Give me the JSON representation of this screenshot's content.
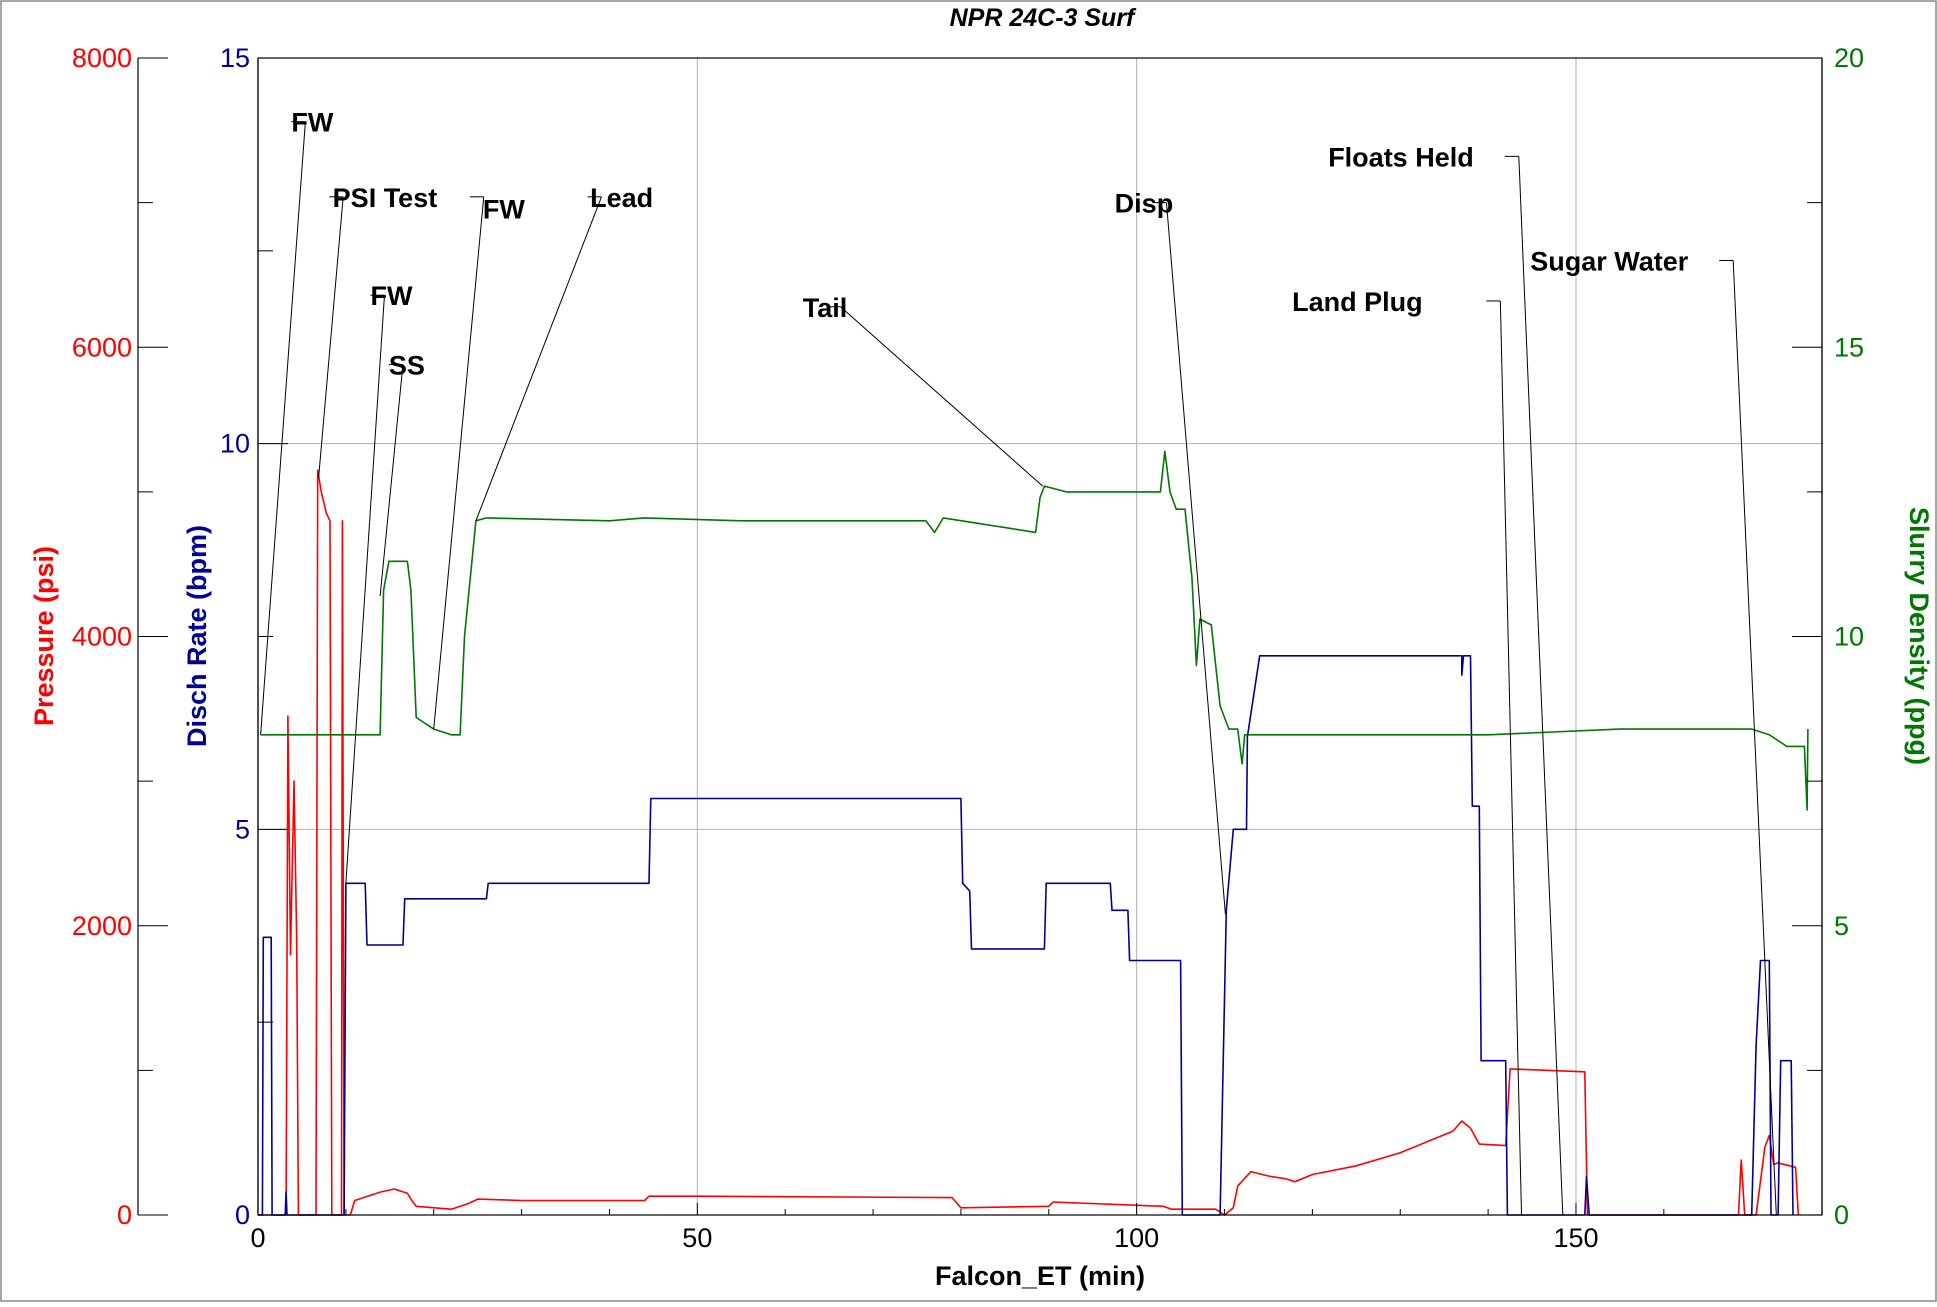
{
  "chart_data": {
    "type": "line",
    "title": "NPR 24C-3 Surf",
    "xlabel": "Falcon_ET (min)",
    "xlim": [
      0,
      178
    ],
    "xticks": [
      0,
      50,
      100,
      150
    ],
    "grid": true,
    "axes": {
      "pressure": {
        "label": "Pressure (psi)",
        "color": "#ff0000",
        "ylim": [
          0,
          8000
        ],
        "ticks": [
          0,
          2000,
          4000,
          6000,
          8000
        ]
      },
      "rate": {
        "label": "Disch Rate (bpm)",
        "color": "#000099",
        "ylim": [
          0,
          15
        ],
        "ticks": [
          0,
          5,
          10,
          15
        ]
      },
      "density": {
        "label": "Slurry Density (ppg)",
        "color": "#007700",
        "ylim": [
          0,
          20
        ],
        "ticks": [
          0,
          5,
          10,
          15,
          20
        ]
      }
    },
    "series": [
      {
        "name": "Pressure (psi)",
        "axis": "pressure",
        "color": "#ff0000",
        "points": [
          [
            0,
            0
          ],
          [
            3.2,
            0
          ],
          [
            3.4,
            3450
          ],
          [
            3.7,
            1800
          ],
          [
            4.1,
            3000
          ],
          [
            4.4,
            1900
          ],
          [
            4.6,
            0
          ],
          [
            6.6,
            0
          ],
          [
            6.8,
            5150
          ],
          [
            7.2,
            5000
          ],
          [
            7.8,
            4850
          ],
          [
            8.2,
            4800
          ],
          [
            8.4,
            0
          ],
          [
            9.5,
            0
          ],
          [
            9.6,
            4800
          ],
          [
            9.8,
            0
          ],
          [
            10.5,
            0
          ],
          [
            11,
            100
          ],
          [
            12,
            120
          ],
          [
            14,
            160
          ],
          [
            15.5,
            180
          ],
          [
            17,
            150
          ],
          [
            17.5,
            100
          ],
          [
            18,
            60
          ],
          [
            22,
            40
          ],
          [
            24,
            80
          ],
          [
            25,
            110
          ],
          [
            30,
            100
          ],
          [
            44,
            100
          ],
          [
            44.5,
            130
          ],
          [
            50,
            130
          ],
          [
            79,
            120
          ],
          [
            80,
            50
          ],
          [
            90,
            60
          ],
          [
            90.5,
            90
          ],
          [
            103,
            60
          ],
          [
            104,
            40
          ],
          [
            109,
            40
          ],
          [
            110,
            0
          ],
          [
            111,
            50
          ],
          [
            111.5,
            200
          ],
          [
            113,
            300
          ],
          [
            115,
            270
          ],
          [
            117,
            250
          ],
          [
            118,
            230
          ],
          [
            120,
            280
          ],
          [
            125,
            340
          ],
          [
            130,
            430
          ],
          [
            136,
            580
          ],
          [
            137,
            650
          ],
          [
            138,
            600
          ],
          [
            139,
            490
          ],
          [
            142,
            480
          ],
          [
            142.5,
            1010
          ],
          [
            151,
            990
          ],
          [
            151.3,
            0
          ],
          [
            168,
            0
          ],
          [
            168.5,
            0
          ],
          [
            168.8,
            380
          ],
          [
            169.2,
            0
          ],
          [
            170.5,
            0
          ],
          [
            171.5,
            470
          ],
          [
            172,
            550
          ],
          [
            172.5,
            350
          ],
          [
            173,
            360
          ],
          [
            175,
            330
          ],
          [
            175.3,
            0
          ]
        ]
      },
      {
        "name": "Disch Rate (bpm)",
        "axis": "rate",
        "color": "#000099",
        "points": [
          [
            0,
            0
          ],
          [
            0.5,
            0
          ],
          [
            0.6,
            3.6
          ],
          [
            1.5,
            3.6
          ],
          [
            1.6,
            0
          ],
          [
            3.1,
            0
          ],
          [
            3.2,
            0.3
          ],
          [
            3.3,
            0
          ],
          [
            9.8,
            0
          ],
          [
            10,
            4.3
          ],
          [
            12.2,
            4.3
          ],
          [
            12.4,
            3.5
          ],
          [
            16.5,
            3.5
          ],
          [
            16.7,
            4.1
          ],
          [
            21.5,
            4.1
          ],
          [
            21.7,
            4.1
          ],
          [
            26,
            4.1
          ],
          [
            26.2,
            4.3
          ],
          [
            44.5,
            4.3
          ],
          [
            44.7,
            5.4
          ],
          [
            80,
            5.4
          ],
          [
            80.2,
            4.3
          ],
          [
            81,
            4.2
          ],
          [
            81.2,
            3.45
          ],
          [
            89.5,
            3.45
          ],
          [
            89.7,
            4.3
          ],
          [
            97,
            4.3
          ],
          [
            97.2,
            3.95
          ],
          [
            99,
            3.95
          ],
          [
            99.2,
            3.3
          ],
          [
            105,
            3.3
          ],
          [
            105.2,
            0
          ],
          [
            109.5,
            0
          ],
          [
            110.2,
            3.95
          ],
          [
            111,
            5.0
          ],
          [
            112.5,
            5.0
          ],
          [
            112.6,
            6.2
          ],
          [
            114,
            7.25
          ],
          [
            137,
            7.25
          ],
          [
            137,
            7.0
          ],
          [
            137.2,
            7.25
          ],
          [
            138,
            7.25
          ],
          [
            138.2,
            5.3
          ],
          [
            139,
            5.3
          ],
          [
            139.2,
            2.0
          ],
          [
            142,
            2.0
          ],
          [
            142.2,
            0
          ],
          [
            151,
            0
          ],
          [
            151.2,
            0.5
          ],
          [
            151.5,
            0
          ],
          [
            170,
            0
          ],
          [
            170.5,
            2.2
          ],
          [
            171,
            3.3
          ],
          [
            172,
            3.3
          ],
          [
            172.2,
            0
          ],
          [
            173,
            0
          ],
          [
            173.3,
            2.0
          ],
          [
            174.5,
            2.0
          ],
          [
            174.7,
            0
          ]
        ]
      },
      {
        "name": "Slurry Density (ppg)",
        "axis": "density",
        "color": "#007700",
        "points": [
          [
            0.3,
            8.3
          ],
          [
            13,
            8.3
          ],
          [
            13.9,
            8.3
          ],
          [
            14.3,
            10.8
          ],
          [
            14.9,
            11.3
          ],
          [
            17,
            11.3
          ],
          [
            17.4,
            10.8
          ],
          [
            18,
            8.6
          ],
          [
            20,
            8.4
          ],
          [
            22,
            8.3
          ],
          [
            23,
            8.3
          ],
          [
            23.5,
            10.0
          ],
          [
            24.8,
            12.0
          ],
          [
            26,
            12.05
          ],
          [
            40,
            12.0
          ],
          [
            44,
            12.05
          ],
          [
            55,
            12.0
          ],
          [
            76,
            12.0
          ],
          [
            77,
            11.8
          ],
          [
            78,
            12.05
          ],
          [
            88.5,
            11.8
          ],
          [
            89,
            12.4
          ],
          [
            89.5,
            12.6
          ],
          [
            92,
            12.5
          ],
          [
            102,
            12.5
          ],
          [
            102.7,
            12.5
          ],
          [
            103.2,
            13.2
          ],
          [
            103.8,
            12.5
          ],
          [
            104.5,
            12.2
          ],
          [
            105.5,
            12.2
          ],
          [
            106.3,
            11.0
          ],
          [
            106.8,
            9.5
          ],
          [
            107.2,
            10.3
          ],
          [
            108.5,
            10.2
          ],
          [
            109.5,
            8.8
          ],
          [
            110.5,
            8.4
          ],
          [
            111.5,
            8.4
          ],
          [
            112,
            7.8
          ],
          [
            112.3,
            8.3
          ],
          [
            125,
            8.3
          ],
          [
            140,
            8.3
          ],
          [
            155,
            8.4
          ],
          [
            170,
            8.4
          ],
          [
            172,
            8.3
          ],
          [
            174,
            8.1
          ],
          [
            176,
            8.1
          ],
          [
            176.3,
            7.0
          ],
          [
            176.4,
            8.4
          ]
        ]
      }
    ],
    "annotations": [
      {
        "label": "FW",
        "text_pos": [
          3.8,
          18.9
        ],
        "line_start": [
          3.8,
          18.9
        ],
        "target": [
          0.3,
          8.3
        ],
        "pointer_axis": "density"
      },
      {
        "label": "PSI Test",
        "text_pos": [
          8.5,
          17.6
        ],
        "line_start": [
          8.1,
          17.6
        ],
        "target": [
          6.9,
          5100
        ],
        "pointer_axis": "pressure"
      },
      {
        "label": "FW",
        "text_pos": [
          25.6,
          17.4
        ],
        "line_start": [
          24.1,
          17.6
        ],
        "target": [
          20.0,
          8.4
        ],
        "pointer_axis": "density"
      },
      {
        "label": "Lead",
        "text_pos": [
          37.8,
          17.6
        ],
        "line_start": [
          37.5,
          17.6
        ],
        "target": [
          24.8,
          12.0
        ],
        "pointer_axis": "density"
      },
      {
        "label": "FW",
        "text_pos": [
          12.8,
          15.9
        ],
        "line_start": [
          12.8,
          15.9
        ],
        "target": [
          10.0,
          4.3
        ],
        "pointer_axis": "rate"
      },
      {
        "label": "SS",
        "text_pos": [
          14.9,
          14.7
        ],
        "line_start": [
          14.9,
          14.7
        ],
        "target": [
          13.9,
          10.7
        ],
        "pointer_axis": "density"
      },
      {
        "label": "Tail",
        "text_pos": [
          62.0,
          15.7
        ],
        "line_start": [
          64.7,
          15.7
        ],
        "target": [
          89.3,
          12.6
        ],
        "pointer_axis": "density"
      },
      {
        "label": "Disp",
        "text_pos": [
          97.5,
          17.5
        ],
        "line_start": [
          101.8,
          17.5
        ],
        "target": [
          110.1,
          3.9
        ],
        "pointer_axis": "rate"
      },
      {
        "label": "Land Plug",
        "text_pos": [
          117.7,
          15.8
        ],
        "line_start": [
          139.8,
          15.8
        ],
        "target": [
          143.8,
          0
        ],
        "pointer_axis": "rate"
      },
      {
        "label": "Floats Held",
        "text_pos": [
          121.8,
          18.3
        ],
        "line_start": [
          141.9,
          18.3
        ],
        "target": [
          148.5,
          0
        ],
        "pointer_axis": "rate"
      },
      {
        "label": "Sugar Water",
        "text_pos": [
          144.8,
          16.5
        ],
        "line_start": [
          166.3,
          16.5
        ],
        "target": [
          172.8,
          0
        ],
        "pointer_axis": "rate"
      }
    ]
  }
}
